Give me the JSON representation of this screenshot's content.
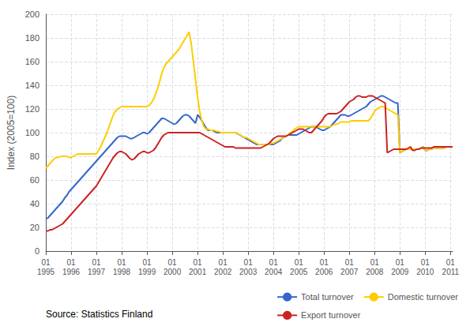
{
  "chart_data": {
    "type": "line",
    "ylabel": "Index (2005=100)",
    "annotation": "Source: Statistics Finland",
    "categories": [
      "01\n1995",
      null,
      null,
      null,
      null,
      null,
      null,
      null,
      null,
      null,
      null,
      null,
      "01\n1996",
      null,
      null,
      null,
      null,
      null,
      null,
      null,
      null,
      null,
      null,
      null,
      "01\n1997",
      null,
      null,
      null,
      null,
      null,
      null,
      null,
      null,
      null,
      null,
      null,
      "01\n1998",
      null,
      null,
      null,
      null,
      null,
      null,
      null,
      null,
      null,
      null,
      null,
      "01\n1999",
      null,
      null,
      null,
      null,
      null,
      null,
      null,
      null,
      null,
      null,
      null,
      "01\n2000",
      null,
      null,
      null,
      null,
      null,
      null,
      null,
      null,
      null,
      null,
      null,
      "01\n2001",
      null,
      null,
      null,
      null,
      null,
      null,
      null,
      null,
      null,
      null,
      null,
      "01\n2002",
      null,
      null,
      null,
      null,
      null,
      null,
      null,
      null,
      null,
      null,
      null,
      "01\n2003",
      null,
      null,
      null,
      null,
      null,
      null,
      null,
      null,
      null,
      null,
      null,
      "01\n2004",
      null,
      null,
      null,
      null,
      null,
      null,
      null,
      null,
      null,
      null,
      null,
      "01\n2005",
      null,
      null,
      null,
      null,
      null,
      null,
      null,
      null,
      null,
      null,
      null,
      "01\n2006",
      null,
      null,
      null,
      null,
      null,
      null,
      null,
      null,
      null,
      null,
      null,
      "01\n2007",
      null,
      null,
      null,
      null,
      null,
      null,
      null,
      null,
      null,
      null,
      null,
      "01\n2008",
      null,
      null,
      null,
      null,
      null,
      null,
      null,
      null,
      null,
      null,
      null,
      "01\n2009",
      null,
      null,
      null,
      null,
      null,
      null,
      null,
      null,
      null,
      null,
      null,
      "01\n2010",
      null,
      null,
      null,
      null,
      null,
      null,
      null,
      null,
      null,
      null,
      null,
      "01\n2011",
      null
    ],
    "series": [
      {
        "name": "Total turnover",
        "color": "#3366cc",
        "values": [
          27,
          28,
          30,
          32,
          34,
          36,
          38,
          40,
          42,
          45,
          47,
          50,
          52,
          54,
          56,
          58,
          60,
          62,
          64,
          66,
          68,
          70,
          72,
          74,
          76,
          78,
          80,
          82,
          84,
          86,
          88,
          90,
          92,
          94,
          96,
          97,
          97,
          97,
          97,
          96,
          95,
          95,
          96,
          97,
          98,
          99,
          100,
          100,
          99,
          100,
          102,
          104,
          106,
          108,
          110,
          112,
          112,
          111,
          110,
          109,
          108,
          107,
          108,
          110,
          112,
          114,
          115,
          115,
          114,
          112,
          110,
          108,
          115,
          113,
          110,
          107,
          104,
          102,
          102,
          102,
          101,
          100,
          100,
          100,
          100,
          100,
          100,
          100,
          100,
          100,
          100,
          99,
          98,
          97,
          96,
          95,
          94,
          93,
          92,
          91,
          90,
          90,
          90,
          90,
          90,
          90,
          90,
          90,
          90,
          91,
          92,
          93,
          95,
          96,
          97,
          98,
          98,
          98,
          98,
          98,
          99,
          100,
          101,
          102,
          103,
          104,
          105,
          105,
          105,
          104,
          103,
          102,
          102,
          103,
          104,
          105,
          107,
          109,
          111,
          113,
          115,
          115,
          115,
          114,
          114,
          115,
          116,
          117,
          118,
          119,
          120,
          121,
          122,
          124,
          126,
          127,
          128,
          129,
          130,
          131,
          131,
          130,
          129,
          128,
          127,
          126,
          125,
          125,
          83,
          84,
          85,
          86,
          86,
          86,
          86,
          86,
          86,
          86,
          87,
          88,
          85,
          85,
          86,
          86,
          87,
          87,
          87,
          87,
          87,
          87,
          88,
          88,
          88,
          88
        ]
      },
      {
        "name": "Domestic turnover",
        "color": "#ffcc00",
        "values": [
          70,
          72,
          74,
          76,
          78,
          79,
          79,
          80,
          80,
          80,
          80,
          79,
          79,
          80,
          81,
          82,
          82,
          82,
          82,
          82,
          82,
          82,
          82,
          82,
          82,
          85,
          88,
          92,
          96,
          100,
          105,
          110,
          115,
          118,
          120,
          121,
          122,
          122,
          122,
          122,
          122,
          122,
          122,
          122,
          122,
          122,
          122,
          122,
          122,
          123,
          125,
          128,
          132,
          137,
          143,
          150,
          155,
          158,
          160,
          162,
          164,
          166,
          168,
          170,
          173,
          176,
          179,
          182,
          185,
          175,
          160,
          145,
          130,
          118,
          110,
          105,
          103,
          103,
          102,
          102,
          102,
          101,
          101,
          100,
          100,
          100,
          100,
          100,
          100,
          100,
          100,
          99,
          98,
          97,
          96,
          96,
          95,
          94,
          93,
          92,
          91,
          90,
          90,
          90,
          90,
          90,
          90,
          91,
          91,
          92,
          93,
          94,
          95,
          96,
          97,
          98,
          100,
          101,
          103,
          104,
          105,
          105,
          105,
          105,
          105,
          105,
          105,
          105,
          105,
          105,
          105,
          105,
          105,
          105,
          105,
          105,
          106,
          107,
          107,
          108,
          109,
          109,
          109,
          109,
          109,
          110,
          110,
          110,
          110,
          110,
          110,
          110,
          110,
          110,
          112,
          115,
          118,
          120,
          121,
          122,
          122,
          121,
          120,
          119,
          118,
          117,
          116,
          115,
          83,
          84,
          85,
          86,
          86,
          86,
          86,
          86,
          86,
          86,
          87,
          88,
          85,
          85,
          86,
          86,
          87,
          87,
          87,
          87,
          87,
          87,
          88,
          88,
          88,
          88
        ]
      },
      {
        "name": "Export turnover",
        "color": "#cc2222",
        "values": [
          17,
          17,
          18,
          18,
          19,
          20,
          21,
          22,
          23,
          25,
          27,
          29,
          31,
          33,
          35,
          37,
          39,
          41,
          43,
          45,
          47,
          49,
          51,
          53,
          55,
          58,
          61,
          64,
          67,
          70,
          73,
          76,
          79,
          81,
          83,
          84,
          84,
          83,
          82,
          80,
          78,
          77,
          78,
          80,
          82,
          83,
          84,
          84,
          83,
          83,
          84,
          85,
          87,
          90,
          93,
          96,
          98,
          99,
          100,
          100,
          100,
          100,
          100,
          100,
          100,
          100,
          100,
          100,
          100,
          100,
          100,
          100,
          100,
          100,
          99,
          98,
          97,
          96,
          95,
          94,
          93,
          92,
          91,
          90,
          89,
          88,
          88,
          88,
          88,
          88,
          87,
          87,
          87,
          87,
          87,
          87,
          87,
          87,
          87,
          87,
          87,
          87,
          87,
          88,
          89,
          90,
          91,
          93,
          95,
          96,
          97,
          97,
          97,
          97,
          97,
          98,
          99,
          100,
          101,
          102,
          103,
          103,
          103,
          102,
          101,
          100,
          100,
          102,
          104,
          106,
          108,
          110,
          113,
          115,
          116,
          116,
          116,
          116,
          116,
          117,
          118,
          120,
          122,
          124,
          126,
          127,
          128,
          130,
          131,
          131,
          130,
          130,
          130,
          131,
          131,
          131,
          130,
          129,
          128,
          127,
          126,
          125,
          83,
          84,
          85,
          86,
          86,
          86,
          86,
          86,
          86,
          86,
          87,
          88,
          85,
          85,
          86,
          86,
          87,
          87,
          87,
          87,
          87,
          87,
          88,
          88,
          88,
          88,
          88,
          88,
          88,
          88,
          88,
          88
        ]
      }
    ],
    "ylim": [
      0,
      200
    ],
    "yticks": [
      0,
      20,
      40,
      60,
      80,
      100,
      120,
      140,
      160,
      180,
      200
    ],
    "grid": true,
    "legend": "lower right"
  }
}
